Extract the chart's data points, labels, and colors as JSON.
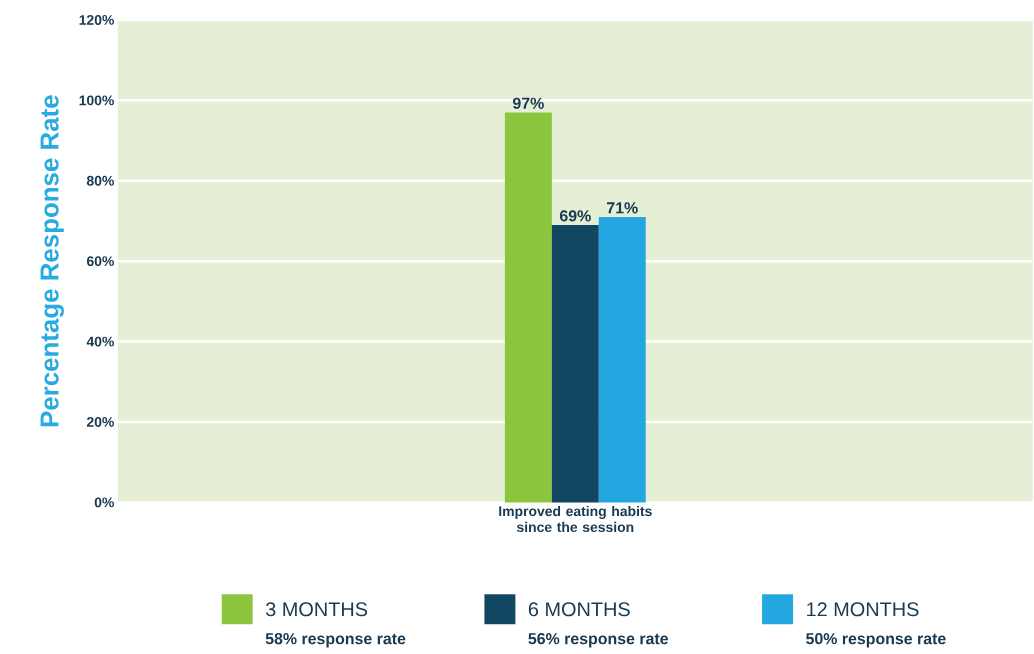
{
  "chart_data": {
    "type": "bar",
    "ylabel": "Percentage Response Rate",
    "categories": [
      "Improved eating habits since the session"
    ],
    "series": [
      {
        "name": "3 MONTHS",
        "color": "#8cc63f",
        "values": [
          97
        ],
        "value_labels": [
          "97%"
        ]
      },
      {
        "name": "6 MONTHS",
        "color": "#124764",
        "values": [
          69
        ],
        "value_labels": [
          "69%"
        ]
      },
      {
        "name": "12 MONTHS",
        "color": "#24a7e0",
        "values": [
          71
        ],
        "value_labels": [
          "71%"
        ]
      }
    ],
    "annotations": [
      "58% response rate",
      "56% response rate",
      "50% response rate"
    ],
    "ylim": [
      0,
      120
    ],
    "yticks": [
      {
        "value": 0,
        "label": "0%"
      },
      {
        "value": 20,
        "label": "20%"
      },
      {
        "value": 40,
        "label": "40%"
      },
      {
        "value": 60,
        "label": "60%"
      },
      {
        "value": 80,
        "label": "80%"
      },
      {
        "value": 100,
        "label": "100%"
      },
      {
        "value": 120,
        "label": "120%"
      }
    ],
    "grid": "y",
    "legend": "bottom"
  }
}
